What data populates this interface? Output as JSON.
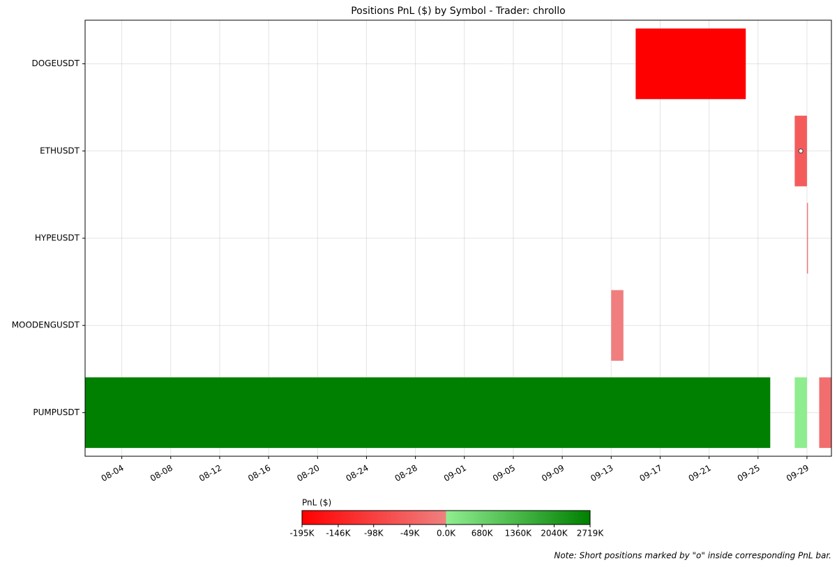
{
  "chart_data": {
    "type": "gantt",
    "title": "Positions PnL ($) by Symbol - Trader: chrollo",
    "categories": [
      "DOGEUSDT",
      "ETHUSDT",
      "HYPEUSDT",
      "MOODENGUSDT",
      "PUMPUSDT"
    ],
    "xlim": [
      "08-01",
      "10-01"
    ],
    "xticks": [
      "08-04",
      "08-08",
      "08-12",
      "08-16",
      "08-20",
      "08-24",
      "08-28",
      "09-01",
      "09-05",
      "09-09",
      "09-13",
      "09-17",
      "09-21",
      "09-25",
      "09-29"
    ],
    "grid": true,
    "positions": [
      {
        "symbol": "DOGEUSDT",
        "start": "09-15",
        "end": "09-24",
        "pnl": -195,
        "short": false
      },
      {
        "symbol": "ETHUSDT",
        "start": "09-28",
        "end": "09-29",
        "pnl": -55,
        "short": true
      },
      {
        "symbol": "HYPEUSDT",
        "start": "09-29",
        "end": "09-29",
        "pnl": -10,
        "short": false
      },
      {
        "symbol": "MOODENGUSDT",
        "start": "09-13",
        "end": "09-14",
        "pnl": -3,
        "short": false
      },
      {
        "symbol": "PUMPUSDT",
        "start": "08-01",
        "end": "09-26",
        "pnl": 2719,
        "short": false
      },
      {
        "symbol": "PUMPUSDT",
        "start": "09-28",
        "end": "09-29",
        "pnl": 30,
        "short": false
      },
      {
        "symbol": "PUMPUSDT",
        "start": "09-30",
        "end": "10-01",
        "pnl": -27,
        "short": false
      }
    ],
    "colorbar": {
      "label": "PnL ($)",
      "lim": [
        -195,
        2719
      ],
      "center": 0,
      "colors": [
        "#ff0000",
        "#f08080",
        "#90ee90",
        "#008000"
      ],
      "ticks": [
        {
          "value": -195,
          "label": "-195K"
        },
        {
          "value": -146,
          "label": "-146K"
        },
        {
          "value": -98,
          "label": "-98K"
        },
        {
          "value": -49,
          "label": "-49K"
        },
        {
          "value": 0,
          "label": "0.0K"
        },
        {
          "value": 680,
          "label": "680K"
        },
        {
          "value": 1360,
          "label": "1360K"
        },
        {
          "value": 2040,
          "label": "2040K"
        },
        {
          "value": 2719,
          "label": "2719K"
        }
      ]
    },
    "note": "Note: Short positions marked by \"o\" inside corresponding PnL bar."
  }
}
